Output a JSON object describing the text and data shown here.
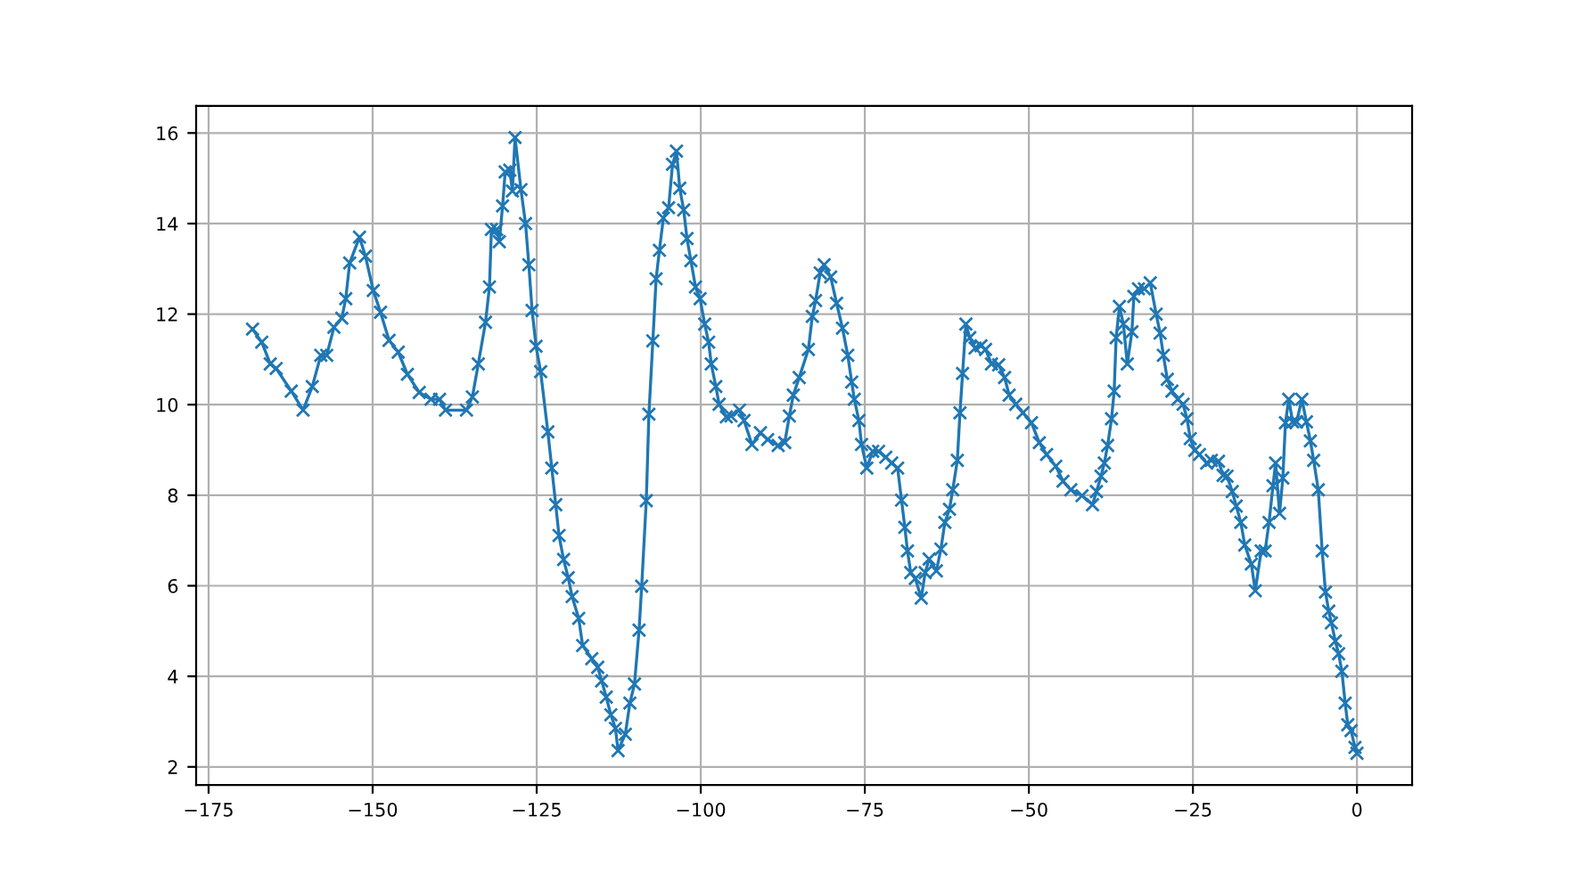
{
  "chart_data": {
    "type": "line",
    "marker": "cross",
    "grid": true,
    "xlim": [
      -176.9,
      8.4
    ],
    "ylim": [
      1.6,
      16.6
    ],
    "xticks": [
      {
        "value": -175,
        "label": "−175"
      },
      {
        "value": -150,
        "label": "−150"
      },
      {
        "value": -125,
        "label": "−125"
      },
      {
        "value": -100,
        "label": "−100"
      },
      {
        "value": -75,
        "label": "−75"
      },
      {
        "value": -50,
        "label": "−50"
      },
      {
        "value": -25,
        "label": "−25"
      },
      0
    ],
    "yticks": [
      2,
      4,
      6,
      8,
      10,
      12,
      14,
      16
    ],
    "series": [
      {
        "color": "#1f77b4",
        "x": [
          -168.3,
          -166.9,
          -165.6,
          -164.7,
          -162.4,
          -160.6,
          -159.2,
          -157.9,
          -157,
          -155.9,
          -154.7,
          -154.1,
          -153.5,
          -152,
          -151.1,
          -149.9,
          -148.8,
          -147.5,
          -146.1,
          -144.7,
          -142.9,
          -141.1,
          -139.8,
          -138.9,
          -135.7,
          -134.8,
          -133.9,
          -132.8,
          -132.2,
          -131.9,
          -131.1,
          -130.7,
          -130.2,
          -129.8,
          -129.1,
          -128.7,
          -128.3,
          -127.4,
          -126.7,
          -126.2,
          -125.7,
          -125.1,
          -124.4,
          -123.3,
          -122.7,
          -122.1,
          -121.6,
          -120.9,
          -120.2,
          -119.6,
          -118.6,
          -118.0,
          -116.6,
          -115.7,
          -115.1,
          -114.4,
          -113.7,
          -113.0,
          -112.6,
          -111.5,
          -110.8,
          -110.1,
          -109.4,
          -109.0,
          -108.3,
          -107.9,
          -107.3,
          -106.8,
          -106.3,
          -105.7,
          -104.9,
          -104.3,
          -103.7,
          -103.2,
          -102.6,
          -102.1,
          -101.5,
          -100.8,
          -100.1,
          -99.4,
          -98.8,
          -98.4,
          -97.7,
          -97.2,
          -96.1,
          -95.4,
          -94.1,
          -93.4,
          -92.2,
          -90.9,
          -89.8,
          -88.2,
          -87.2,
          -86.5,
          -85.9,
          -85.0,
          -83.6,
          -83.0,
          -82.5,
          -81.8,
          -81.2,
          -80.2,
          -79.3,
          -78.4,
          -77.6,
          -77.0,
          -76.6,
          -75.9,
          -75.5,
          -74.7,
          -73.8,
          -72.9,
          -71.8,
          -70.9,
          -70.0,
          -69.4,
          -68.9,
          -68.5,
          -68.0,
          -67.3,
          -66.4,
          -65.8,
          -65.2,
          -64.1,
          -63.4,
          -62.8,
          -62.1,
          -61.6,
          -60.9,
          -60.5,
          -60.1,
          -59.6,
          -59.0,
          -58.2,
          -57.3,
          -56.6,
          -55.7,
          -54.6,
          -53.7,
          -53.0,
          -52.0,
          -50.9,
          -49.6,
          -48.4,
          -47.3,
          -45.9,
          -44.8,
          -43.6,
          -41.9,
          -40.3,
          -39.7,
          -39.0,
          -38.5,
          -38.0,
          -37.4,
          -37.0,
          -36.7,
          -36.2,
          -35.6,
          -35.0,
          -34.3,
          -34.0,
          -33.3,
          -32.4,
          -31.5,
          -30.6,
          -30.0,
          -29.5,
          -28.9,
          -28.2,
          -27.3,
          -26.5,
          -25.9,
          -25.4,
          -24.7,
          -24.0,
          -22.9,
          -22.2,
          -21.1,
          -20.4,
          -19.8,
          -19.0,
          -18.4,
          -17.7,
          -17.1,
          -16.1,
          -15.5,
          -14.6,
          -14.0,
          -13.4,
          -12.8,
          -12.4,
          -11.8,
          -11.3,
          -10.9,
          -10.4,
          -9.8,
          -9.2,
          -8.4,
          -7.7,
          -7.1,
          -6.6,
          -5.9,
          -5.3,
          -4.8,
          -4.3,
          -3.9,
          -3.3,
          -2.8,
          -2.3,
          -1.8,
          -1.4,
          -0.9,
          -0.3,
          0
        ],
        "values": [
          11.67,
          11.38,
          10.9,
          10.8,
          10.3,
          9.88,
          10.4,
          11.09,
          11.09,
          11.71,
          11.91,
          12.34,
          13.13,
          13.7,
          13.28,
          12.52,
          12.04,
          11.42,
          11.16,
          10.67,
          10.27,
          10.12,
          10.12,
          9.88,
          9.88,
          10.17,
          10.9,
          11.82,
          12.6,
          13.87,
          13.87,
          13.6,
          14.39,
          15.14,
          15.18,
          14.72,
          15.9,
          14.75,
          14.0,
          13.09,
          12.08,
          11.29,
          10.73,
          9.4,
          8.6,
          7.79,
          7.11,
          6.58,
          6.18,
          5.76,
          5.28,
          4.68,
          4.39,
          4.2,
          3.9,
          3.54,
          3.15,
          2.85,
          2.36,
          2.72,
          3.41,
          3.83,
          5.02,
          5.99,
          7.88,
          9.79,
          11.41,
          12.78,
          13.41,
          14.12,
          14.35,
          15.31,
          15.6,
          14.78,
          14.3,
          13.67,
          13.18,
          12.6,
          12.34,
          11.78,
          11.38,
          10.9,
          10.4,
          10.01,
          9.73,
          9.75,
          9.88,
          9.65,
          9.12,
          9.38,
          9.23,
          9.1,
          9.16,
          9.75,
          10.21,
          10.6,
          11.22,
          11.95,
          12.3,
          12.91,
          13.09,
          12.82,
          12.24,
          11.69,
          11.09,
          10.5,
          10.12,
          9.65,
          9.12,
          8.6,
          8.97,
          8.97,
          8.84,
          8.71,
          8.6,
          7.89,
          7.29,
          6.77,
          6.29,
          6.16,
          5.73,
          6.29,
          6.59,
          6.33,
          6.81,
          7.4,
          7.69,
          8.12,
          8.77,
          9.82,
          10.69,
          11.78,
          11.48,
          11.25,
          11.3,
          11.22,
          10.9,
          10.88,
          10.6,
          10.21,
          10.01,
          9.82,
          9.6,
          9.16,
          8.9,
          8.64,
          8.31,
          8.12,
          7.99,
          7.79,
          8.08,
          8.42,
          8.71,
          9.1,
          9.69,
          10.3,
          11.48,
          12.17,
          11.78,
          10.9,
          11.61,
          12.39,
          12.56,
          12.56,
          12.69,
          12.0,
          11.58,
          11.09,
          10.56,
          10.3,
          10.12,
          10.01,
          9.69,
          9.25,
          8.99,
          8.9,
          8.71,
          8.77,
          8.75,
          8.44,
          8.42,
          8.08,
          7.76,
          7.4,
          6.9,
          6.48,
          5.89,
          6.77,
          6.77,
          7.4,
          8.21,
          8.71,
          7.6,
          8.38,
          9.6,
          10.12,
          9.62,
          9.62,
          10.12,
          9.62,
          9.2,
          8.77,
          8.12,
          6.77,
          5.86,
          5.44,
          5.18,
          4.78,
          4.5,
          4.11,
          3.41,
          2.93,
          2.8,
          2.43,
          2.3
        ]
      }
    ]
  }
}
